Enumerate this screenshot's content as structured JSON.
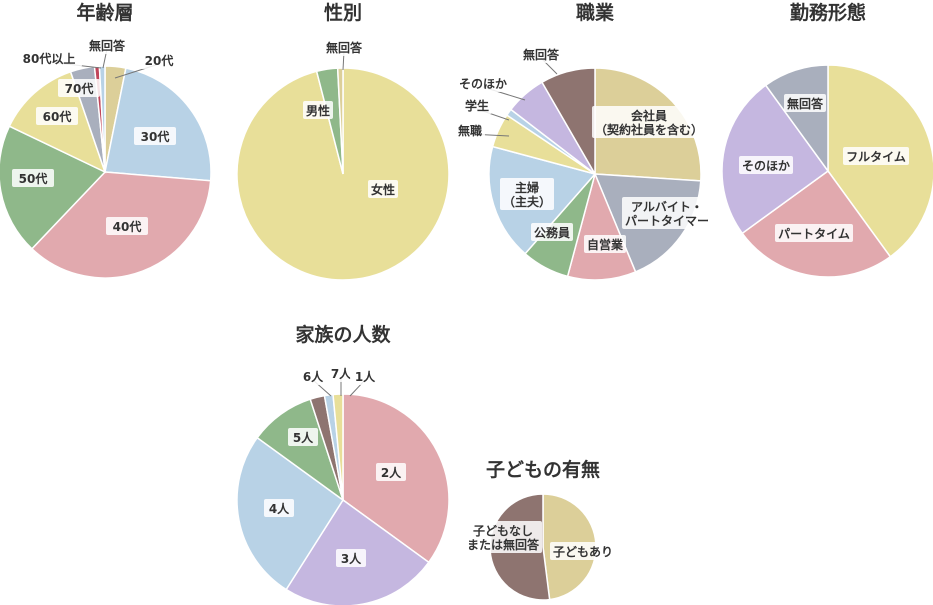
{
  "colors": {
    "yellow": "#e8df99",
    "blue": "#b8d2e6",
    "pink": "#e1a9ae",
    "green": "#8fb88a",
    "gray": "#a9afbd",
    "tan": "#dccf99",
    "purple": "#c5b7e0",
    "brown": "#8e7470",
    "red": "#c0455a"
  },
  "chart_data": [
    {
      "id": "age",
      "type": "pie",
      "title": "年齢層",
      "slices": [
        {
          "label": "20代",
          "value": 3,
          "color": "tan"
        },
        {
          "label": "30代",
          "value": 22,
          "color": "blue"
        },
        {
          "label": "40代",
          "value": 34,
          "color": "pink"
        },
        {
          "label": "50代",
          "value": 19,
          "color": "green"
        },
        {
          "label": "60代",
          "value": 12,
          "color": "yellow"
        },
        {
          "label": "70代",
          "value": 3.5,
          "color": "gray"
        },
        {
          "label": "80代以上",
          "value": 0.7,
          "color": "red"
        },
        {
          "label": "無回答",
          "value": 0.8,
          "color": "blue"
        }
      ]
    },
    {
      "id": "gender",
      "type": "pie",
      "title": "性別",
      "slices": [
        {
          "label": "女性",
          "value": 96,
          "color": "yellow"
        },
        {
          "label": "男性",
          "value": 3.2,
          "color": "green"
        },
        {
          "label": "無回答",
          "value": 0.8,
          "color": "tan"
        }
      ]
    },
    {
      "id": "occupation",
      "type": "pie",
      "title": "職業",
      "slices": [
        {
          "label": "会社員\n（契約社員を含む）",
          "value": 25,
          "color": "tan"
        },
        {
          "label": "アルバイト・\nパートタイマー",
          "value": 17,
          "color": "gray"
        },
        {
          "label": "自営業",
          "value": 10,
          "color": "pink"
        },
        {
          "label": "公務員",
          "value": 7,
          "color": "green"
        },
        {
          "label": "主婦\n（主夫）",
          "value": 17,
          "color": "blue"
        },
        {
          "label": "無職",
          "value": 5,
          "color": "yellow"
        },
        {
          "label": "学生",
          "value": 1,
          "color": "blue"
        },
        {
          "label": "そのほか",
          "value": 6,
          "color": "purple"
        },
        {
          "label": "無回答",
          "value": 8,
          "color": "brown"
        }
      ]
    },
    {
      "id": "work_style",
      "type": "pie",
      "title": "勤務形態",
      "slices": [
        {
          "label": "フルタイム",
          "value": 40,
          "color": "yellow"
        },
        {
          "label": "パートタイム",
          "value": 25,
          "color": "pink"
        },
        {
          "label": "そのほか",
          "value": 25,
          "color": "purple"
        },
        {
          "label": "無回答",
          "value": 10,
          "color": "gray"
        }
      ]
    },
    {
      "id": "family",
      "type": "pie",
      "title": "家族の人数",
      "slices": [
        {
          "label": "2人",
          "value": 35,
          "color": "pink"
        },
        {
          "label": "3人",
          "value": 24,
          "color": "purple"
        },
        {
          "label": "4人",
          "value": 26,
          "color": "blue"
        },
        {
          "label": "5人",
          "value": 10,
          "color": "green"
        },
        {
          "label": "6人",
          "value": 2.2,
          "color": "brown"
        },
        {
          "label": "7人",
          "value": 1.3,
          "color": "blue"
        },
        {
          "label": "1人",
          "value": 1.5,
          "color": "yellow"
        }
      ]
    },
    {
      "id": "children",
      "type": "pie",
      "title": "子どもの有無",
      "slices": [
        {
          "label": "子どもあり",
          "value": 48,
          "color": "tan"
        },
        {
          "label": "子どもなし\nまたは無回答",
          "value": 52,
          "color": "brown"
        }
      ]
    }
  ]
}
